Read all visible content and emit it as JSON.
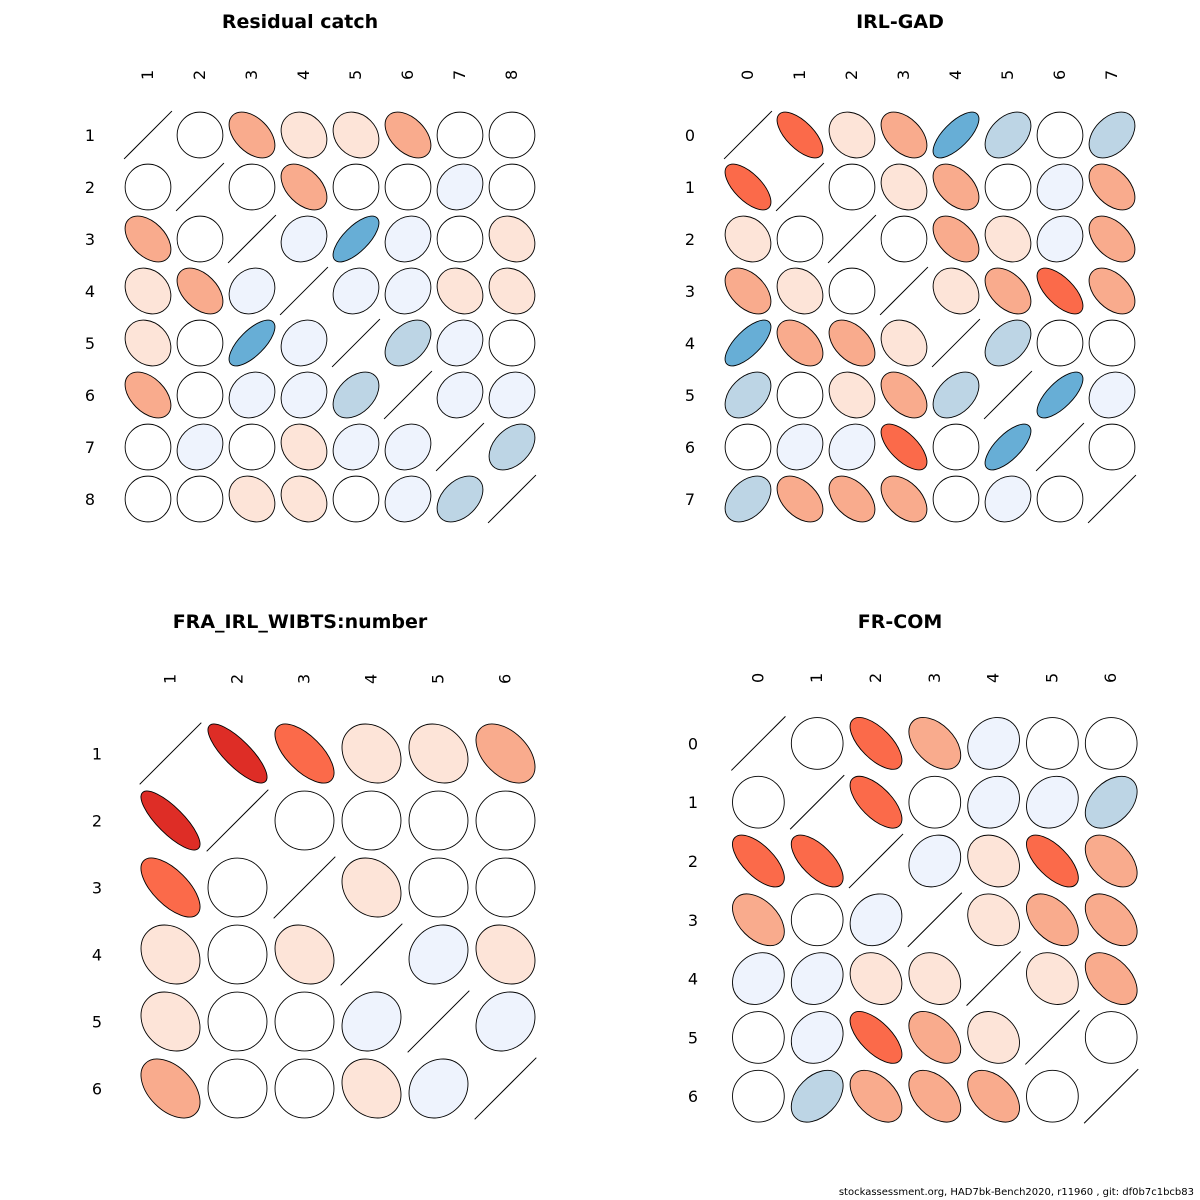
{
  "footer": "stockassessment.org, HAD7bk-Bench2020, r11960 , git: df0b7c1bcb83",
  "colors": {
    "neg_strong": "#67aed6",
    "neg_mid": "#bdd5e5",
    "neg_weak": "#eef3fd",
    "none": "#ffffff",
    "pos_weak": "#fde4d8",
    "pos_mid": "#f9ab8d",
    "pos_strong": "#fb6a4a",
    "pos_max": "#de2d26"
  },
  "chart_data": [
    {
      "type": "heatmap",
      "title": "Residual catch",
      "labels": [
        "1",
        "2",
        "3",
        "4",
        "5",
        "6",
        "7",
        "8"
      ],
      "matrix": [
        [
          1.0,
          0.0,
          0.45,
          0.2,
          0.2,
          0.45,
          0.0,
          0.0
        ],
        [
          0.0,
          1.0,
          0.0,
          0.45,
          0.0,
          0.0,
          -0.15,
          0.0
        ],
        [
          0.45,
          0.0,
          1.0,
          -0.15,
          -0.7,
          -0.15,
          0.0,
          0.2
        ],
        [
          0.2,
          0.45,
          -0.15,
          1.0,
          -0.15,
          -0.15,
          0.2,
          0.2
        ],
        [
          0.2,
          0.0,
          -0.7,
          -0.15,
          1.0,
          -0.4,
          -0.15,
          0.0
        ],
        [
          0.45,
          0.0,
          -0.15,
          -0.15,
          -0.4,
          1.0,
          -0.15,
          -0.15
        ],
        [
          0.0,
          -0.15,
          0.0,
          0.2,
          -0.15,
          -0.15,
          1.0,
          -0.4
        ],
        [
          0.0,
          0.0,
          0.2,
          0.2,
          0.0,
          -0.15,
          -0.4,
          1.0
        ]
      ]
    },
    {
      "type": "heatmap",
      "title": "IRL-GAD",
      "labels": [
        "0",
        "1",
        "2",
        "3",
        "4",
        "5",
        "6",
        "7"
      ],
      "matrix": [
        [
          1.0,
          0.65,
          0.2,
          0.45,
          -0.7,
          -0.4,
          0.0,
          -0.4
        ],
        [
          0.65,
          1.0,
          0.0,
          0.2,
          0.45,
          0.0,
          -0.15,
          0.45
        ],
        [
          0.2,
          0.0,
          1.0,
          0.0,
          0.45,
          0.2,
          -0.15,
          0.45
        ],
        [
          0.45,
          0.2,
          0.0,
          1.0,
          0.2,
          0.45,
          0.65,
          0.45
        ],
        [
          -0.7,
          0.45,
          0.45,
          0.2,
          1.0,
          -0.4,
          0.0,
          0.0
        ],
        [
          -0.4,
          0.0,
          0.2,
          0.45,
          -0.4,
          1.0,
          -0.7,
          -0.15
        ],
        [
          0.0,
          -0.15,
          -0.15,
          0.65,
          0.0,
          -0.7,
          1.0,
          0.0
        ],
        [
          -0.4,
          0.45,
          0.45,
          0.45,
          0.0,
          -0.15,
          0.0,
          1.0
        ]
      ]
    },
    {
      "type": "heatmap",
      "title": "FRA_IRL_WIBTS:number",
      "labels": [
        "1",
        "2",
        "3",
        "4",
        "5",
        "6"
      ],
      "matrix": [
        [
          1.0,
          0.8,
          0.65,
          0.2,
          0.2,
          0.45
        ],
        [
          0.8,
          1.0,
          0.0,
          0.0,
          0.0,
          0.0
        ],
        [
          0.65,
          0.0,
          1.0,
          0.2,
          0.0,
          0.0
        ],
        [
          0.2,
          0.0,
          0.2,
          1.0,
          -0.15,
          0.2
        ],
        [
          0.2,
          0.0,
          0.0,
          -0.15,
          1.0,
          -0.15
        ],
        [
          0.45,
          0.0,
          0.0,
          0.2,
          -0.15,
          1.0
        ]
      ]
    },
    {
      "type": "heatmap",
      "title": "FR-COM",
      "labels": [
        "0",
        "1",
        "2",
        "3",
        "4",
        "5",
        "6"
      ],
      "matrix": [
        [
          1.0,
          0.0,
          0.65,
          0.45,
          -0.15,
          0.0,
          0.0
        ],
        [
          0.0,
          1.0,
          0.65,
          0.0,
          -0.15,
          -0.15,
          -0.4
        ],
        [
          0.65,
          0.65,
          1.0,
          -0.15,
          0.2,
          0.65,
          0.45
        ],
        [
          0.45,
          0.0,
          -0.15,
          1.0,
          0.2,
          0.45,
          0.45
        ],
        [
          -0.15,
          -0.15,
          0.2,
          0.2,
          1.0,
          0.2,
          0.45
        ],
        [
          0.0,
          -0.15,
          0.65,
          0.45,
          0.2,
          1.0,
          0.0
        ],
        [
          0.0,
          -0.4,
          0.45,
          0.45,
          0.45,
          0.0,
          1.0
        ]
      ]
    }
  ]
}
